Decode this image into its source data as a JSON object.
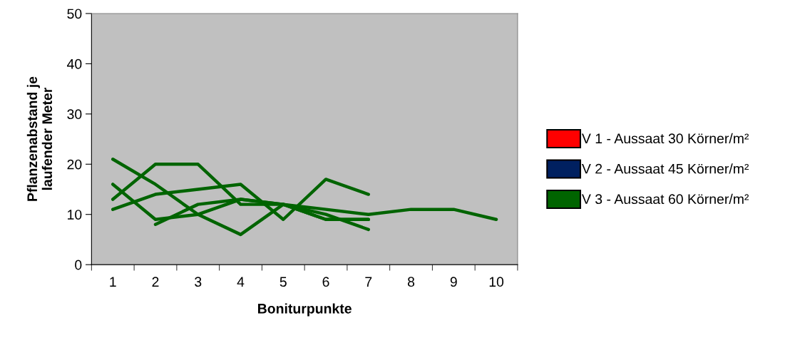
{
  "chart_data": {
    "type": "line",
    "xlabel": "Boniturpunkte",
    "ylabel": "Pflanzenabstand je\nlaufender Meter",
    "categories": [
      "1",
      "2",
      "3",
      "4",
      "5",
      "6",
      "7",
      "8",
      "9",
      "10"
    ],
    "series": [
      {
        "name": "V 1 - Aussaat 30 Körner/m²",
        "color": "#ff0000",
        "values": [
          null,
          null,
          null,
          null,
          null,
          null,
          null,
          null,
          null,
          null
        ]
      },
      {
        "name": "V 2 - Aussaat 45 Körner/m²",
        "color": "#002060",
        "values": [
          null,
          null,
          null,
          null,
          null,
          null,
          null,
          null,
          null,
          null
        ]
      },
      {
        "name": "V 3 - Aussaat 60 Körner/m²",
        "color": "#006400",
        "values": [
          16,
          9,
          10,
          13,
          12,
          11,
          10,
          11,
          11,
          9
        ]
      },
      {
        "color": "#006400",
        "values": [
          21,
          16,
          10,
          6,
          12,
          10,
          7,
          null,
          null,
          null
        ]
      },
      {
        "color": "#006400",
        "values": [
          13,
          20,
          20,
          12,
          12,
          9,
          9,
          null,
          null,
          null
        ]
      },
      {
        "color": "#006400",
        "values": [
          11,
          14,
          15,
          16,
          9,
          17,
          14,
          null,
          null,
          null
        ]
      },
      {
        "color": "#006400",
        "values": [
          null,
          8,
          12,
          13,
          12,
          9,
          9,
          null,
          null,
          null
        ]
      }
    ],
    "ylim": [
      0,
      50
    ],
    "yticks": [
      0,
      10,
      20,
      30,
      40,
      50
    ],
    "grid": false,
    "legend": "right",
    "marker": "none",
    "line_style": "solid"
  }
}
